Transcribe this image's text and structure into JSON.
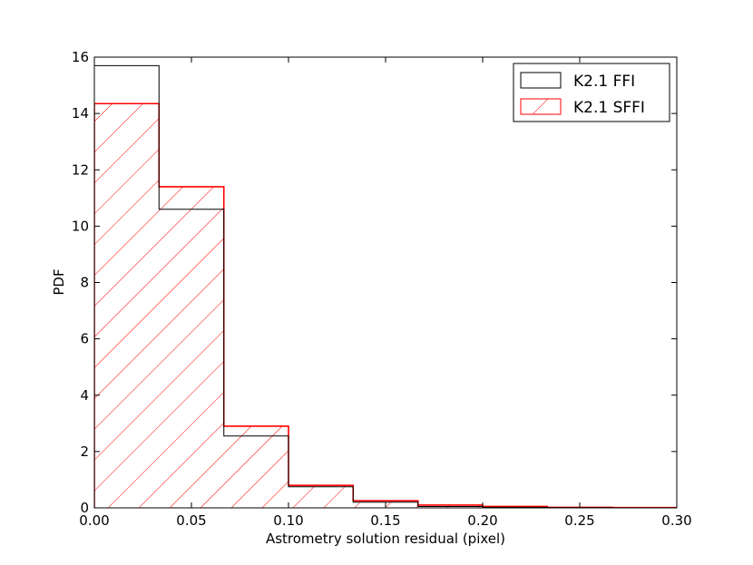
{
  "chart_data": {
    "type": "histogram",
    "xlabel": "Astrometry solution residual (pixel)",
    "ylabel": "PDF",
    "xlim": [
      0.0,
      0.3
    ],
    "ylim": [
      0,
      16
    ],
    "xticks": [
      "0.00",
      "0.05",
      "0.10",
      "0.15",
      "0.20",
      "0.25",
      "0.30"
    ],
    "yticks": [
      "0",
      "2",
      "4",
      "6",
      "8",
      "10",
      "12",
      "14",
      "16"
    ],
    "bin_edges": [
      0.0,
      0.0333,
      0.0667,
      0.1,
      0.1333,
      0.1667,
      0.2,
      0.2333,
      0.2667,
      0.3
    ],
    "series": [
      {
        "name": "K2.1 FFI",
        "color": "#000000",
        "hatch": false,
        "values": [
          15.7,
          10.6,
          2.55,
          0.75,
          0.2,
          0.05,
          0.02,
          0.01,
          0.0
        ]
      },
      {
        "name": "K2.1 SFFI",
        "color": "#ff0000",
        "hatch": true,
        "values": [
          14.35,
          11.4,
          2.9,
          0.8,
          0.25,
          0.1,
          0.05,
          0.02,
          0.01
        ]
      }
    ],
    "legend_position": "top-right",
    "grid": false
  }
}
